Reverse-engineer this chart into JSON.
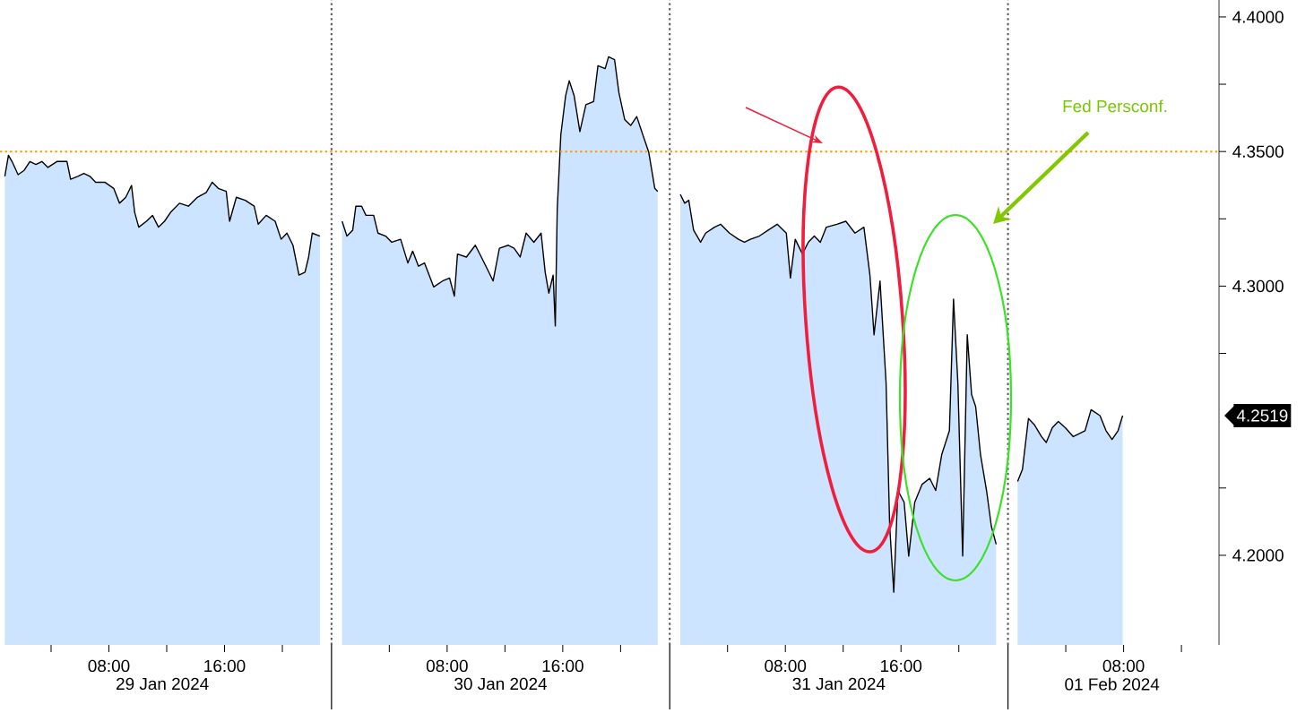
{
  "chart_data": {
    "type": "area",
    "series": [
      {
        "color": "#cce4ff",
        "x": [
          "2024-01-29T00:48",
          "2024-01-29T01:03",
          "2024-01-29T01:18",
          "2024-01-29T01:43",
          "2024-01-29T02:08",
          "2024-01-29T02:32",
          "2024-01-29T02:57",
          "2024-01-29T03:22",
          "2024-01-29T03:47",
          "2024-01-29T04:24",
          "2024-01-29T05:06",
          "2024-01-29T05:21",
          "2024-01-29T05:51",
          "2024-01-29T06:16",
          "2024-01-29T06:41",
          "2024-01-29T07:05",
          "2024-01-29T07:43",
          "2024-01-29T08:20",
          "2024-01-29T08:44",
          "2024-01-29T09:10",
          "2024-01-29T09:34",
          "2024-01-29T09:47",
          "2024-01-29T10:04",
          "2024-01-29T10:36",
          "2024-01-29T11:01",
          "2024-01-29T11:26",
          "2024-01-29T11:51",
          "2024-01-29T12:16",
          "2024-01-29T12:53",
          "2024-01-29T13:30",
          "2024-01-29T14:07",
          "2024-01-29T14:44",
          "2024-01-29T15:09",
          "2024-01-29T15:34",
          "2024-01-29T16:07",
          "2024-01-29T16:21",
          "2024-01-29T16:49",
          "2024-01-29T17:26",
          "2024-01-29T18:03",
          "2024-01-29T18:20",
          "2024-01-29T18:53",
          "2024-01-29T19:30",
          "2024-01-29T19:55",
          "2024-01-29T20:19",
          "2024-01-29T20:44",
          "2024-01-29T21:09",
          "2024-01-29T21:34",
          "2024-01-29T21:49",
          "2024-01-29T22:04",
          "2024-01-29T22:36",
          "2024-01-29T23:30",
          "2024-01-30T00:44",
          "2024-01-30T01:04",
          "2024-01-30T01:28",
          "2024-01-30T01:41",
          "2024-01-30T02:05",
          "2024-01-30T02:23",
          "2024-01-30T02:55",
          "2024-01-30T03:13",
          "2024-01-30T03:45",
          "2024-01-30T04:10",
          "2024-01-30T04:47",
          "2024-01-30T05:17",
          "2024-01-30T05:37",
          "2024-01-30T06:01",
          "2024-01-30T06:26",
          "2024-01-30T07:04",
          "2024-01-30T07:41",
          "2024-01-30T08:10",
          "2024-01-30T08:30",
          "2024-01-30T08:43",
          "2024-01-30T09:20",
          "2024-01-30T09:57",
          "2024-01-30T10:22",
          "2024-01-30T10:47",
          "2024-01-30T11:11",
          "2024-01-30T11:37",
          "2024-01-30T12:14",
          "2024-01-30T12:38",
          "2024-01-30T13:03",
          "2024-01-30T13:28",
          "2024-01-30T14:00",
          "2024-01-30T14:30",
          "2024-01-30T14:47",
          "2024-01-30T15:02",
          "2024-01-30T15:20",
          "2024-01-30T15:29",
          "2024-01-30T15:37",
          "2024-01-30T15:52",
          "2024-01-30T16:12",
          "2024-01-30T16:27",
          "2024-01-30T16:47",
          "2024-01-30T17:11",
          "2024-01-30T17:36",
          "2024-01-30T18:08",
          "2024-01-30T18:26",
          "2024-01-30T18:56",
          "2024-01-30T19:10",
          "2024-01-30T19:35",
          "2024-01-30T19:53",
          "2024-01-30T20:17",
          "2024-01-30T20:42",
          "2024-01-30T21:07",
          "2024-01-30T21:32",
          "2024-01-30T21:57",
          "2024-01-30T22:22",
          "2024-01-30T22:34",
          "2024-01-30T23:30",
          "2024-01-31T00:44",
          "2024-01-31T01:02",
          "2024-01-31T01:19",
          "2024-01-31T01:39",
          "2024-01-31T02:08",
          "2024-01-31T02:29",
          "2024-01-31T03:06",
          "2024-01-31T03:31",
          "2024-01-31T04:08",
          "2024-01-31T04:45",
          "2024-01-31T05:10",
          "2024-01-31T05:35",
          "2024-01-31T06:12",
          "2024-01-31T06:49",
          "2024-01-31T07:26",
          "2024-01-31T08:04",
          "2024-01-31T08:21",
          "2024-01-31T08:41",
          "2024-01-31T09:11",
          "2024-01-31T09:35",
          "2024-01-31T10:00",
          "2024-01-31T10:25",
          "2024-01-31T10:50",
          "2024-01-31T11:34",
          "2024-01-31T12:11",
          "2024-01-31T12:49",
          "2024-01-31T13:26",
          "2024-01-31T13:51",
          "2024-01-31T14:08",
          "2024-01-31T14:33",
          "2024-01-31T14:58",
          "2024-01-31T15:13",
          "2024-01-31T15:30",
          "2024-01-31T15:47",
          "2024-01-31T16:13",
          "2024-01-31T16:32",
          "2024-01-31T16:57",
          "2024-01-31T17:27",
          "2024-01-31T17:59",
          "2024-01-31T18:24",
          "2024-01-31T18:49",
          "2024-01-31T19:21",
          "2024-01-31T19:38",
          "2024-01-31T19:56",
          "2024-01-31T20:16",
          "2024-01-31T20:35",
          "2024-01-31T20:53",
          "2024-01-31T21:10",
          "2024-01-31T21:30",
          "2024-01-31T21:55",
          "2024-01-31T22:15",
          "2024-01-31T22:35",
          "2024-01-31T23:30",
          "2024-02-01T00:40",
          "2024-02-01T01:00",
          "2024-02-01T01:25",
          "2024-02-01T01:49",
          "2024-02-01T02:19",
          "2024-02-01T02:39",
          "2024-02-01T03:04",
          "2024-02-01T03:29",
          "2024-02-01T03:58",
          "2024-02-01T04:31",
          "2024-02-01T04:56",
          "2024-02-01T05:20",
          "2024-02-01T05:45",
          "2024-02-01T06:22",
          "2024-02-01T06:47",
          "2024-02-01T07:12",
          "2024-02-01T07:37",
          "2024-02-01T07:56"
        ],
        "values": [
          4.3408,
          4.3486,
          4.3463,
          4.3414,
          4.343,
          4.3463,
          4.3452,
          4.3463,
          4.3441,
          4.3463,
          4.3463,
          4.3397,
          4.3408,
          4.3419,
          4.3408,
          4.3386,
          4.3386,
          4.3363,
          4.3308,
          4.333,
          4.3374,
          4.3274,
          4.3219,
          4.3241,
          4.3263,
          4.3219,
          4.3241,
          4.3274,
          4.3308,
          4.3297,
          4.333,
          4.3348,
          4.3386,
          4.3363,
          4.3352,
          4.3241,
          4.333,
          4.3319,
          4.3297,
          4.323,
          4.3263,
          4.3241,
          4.3174,
          4.3197,
          4.3152,
          4.3041,
          4.3052,
          4.3108,
          4.3197,
          4.3186,
          null,
          4.3241,
          4.3186,
          4.3208,
          4.3297,
          4.3297,
          4.3263,
          4.3263,
          4.3197,
          4.3186,
          4.3163,
          4.3174,
          4.3086,
          4.313,
          4.3074,
          4.3086,
          4.2997,
          4.3019,
          4.303,
          4.2963,
          4.3119,
          4.3108,
          4.3152,
          4.3108,
          4.3063,
          4.3019,
          4.3141,
          4.3152,
          4.3141,
          4.3108,
          4.3197,
          4.3163,
          4.3197,
          4.3052,
          4.2974,
          4.3041,
          4.2852,
          4.3286,
          4.3563,
          4.3708,
          4.3763,
          4.3708,
          4.3574,
          4.3674,
          4.3686,
          4.3819,
          4.3808,
          4.3852,
          4.3841,
          4.3719,
          4.3619,
          4.3597,
          4.363,
          4.3563,
          4.3497,
          4.3363,
          4.3352,
          null,
          4.3341,
          4.3308,
          4.3319,
          4.3208,
          4.3163,
          4.3197,
          4.3219,
          4.323,
          4.3197,
          4.3174,
          4.3163,
          4.3174,
          4.3186,
          4.3208,
          4.323,
          4.3197,
          4.303,
          4.3174,
          4.3119,
          4.3163,
          4.3186,
          4.3163,
          4.3219,
          4.323,
          4.3241,
          4.3197,
          4.3219,
          4.3041,
          4.2819,
          4.3019,
          4.2641,
          4.2108,
          4.1863,
          4.2241,
          4.2197,
          4.1997,
          4.2197,
          4.2263,
          4.2286,
          4.2241,
          4.2374,
          4.2463,
          4.2952,
          4.2641,
          4.1997,
          4.2819,
          4.2597,
          4.2552,
          4.2374,
          4.2241,
          4.2108,
          4.2041,
          null,
          4.2274,
          4.2319,
          4.2508,
          4.2486,
          4.2441,
          4.2419,
          4.2474,
          4.2497,
          4.2474,
          4.2441,
          4.2452,
          4.2463,
          4.2541,
          4.2519,
          4.2463,
          4.243,
          4.2463,
          4.2519
        ]
      }
    ],
    "xlim": [
      "2024-01-29T00:28",
      "2024-02-01T14:36"
    ],
    "xticks": [
      {
        "value": "2024-01-29T04:00",
        "label": null
      },
      {
        "value": "2024-01-29T08:00",
        "label": "08:00"
      },
      {
        "value": "2024-01-29T12:00",
        "label": null
      },
      {
        "value": "2024-01-29T16:00",
        "label": "16:00"
      },
      {
        "value": "2024-01-29T20:00",
        "label": null
      },
      {
        "value": "2024-01-30T04:00",
        "label": null
      },
      {
        "value": "2024-01-30T08:00",
        "label": "08:00"
      },
      {
        "value": "2024-01-30T12:00",
        "label": null
      },
      {
        "value": "2024-01-30T16:00",
        "label": "16:00"
      },
      {
        "value": "2024-01-30T20:00",
        "label": null
      },
      {
        "value": "2024-01-31T04:00",
        "label": null
      },
      {
        "value": "2024-01-31T08:00",
        "label": "08:00"
      },
      {
        "value": "2024-01-31T12:00",
        "label": null
      },
      {
        "value": "2024-01-31T16:00",
        "label": "16:00"
      },
      {
        "value": "2024-01-31T20:00",
        "label": null
      },
      {
        "value": "2024-02-01T04:00",
        "label": null
      },
      {
        "value": "2024-02-01T08:00",
        "label": "08:00"
      },
      {
        "value": "2024-02-01T12:00",
        "label": null
      }
    ],
    "x2lim": [
      "2024-01-29T11:42",
      "2024-02-01T07:12"
    ],
    "x2ticks": [
      {
        "value": "2024-01-29T11:42",
        "label": "29 Jan 2024"
      },
      {
        "value": "2024-01-30T11:42",
        "label": "30 Jan 2024"
      },
      {
        "value": "2024-01-31T11:42",
        "label": "31 Jan 2024"
      },
      {
        "value": "2024-02-01T07:12",
        "label": "01 Feb 2024"
      }
    ],
    "ylim": [
      4.1667,
      4.4063
    ],
    "yticks": [
      {
        "value": 4.2,
        "label": "4.2000"
      },
      {
        "value": 4.225,
        "label": null
      },
      {
        "value": 4.275,
        "label": null
      },
      {
        "value": 4.3,
        "label": "4.3000"
      },
      {
        "value": 4.325,
        "label": null
      },
      {
        "value": 4.35,
        "label": "4.3500"
      },
      {
        "value": 4.375,
        "label": null
      },
      {
        "value": 4.4,
        "label": "4.4000"
      }
    ],
    "ref_lines": [
      {
        "axis": "y",
        "value": 4.35,
        "color": "#f39c12",
        "line_style": "dotted"
      },
      {
        "axis": "x",
        "value": "2024-01-30T00:00",
        "color": "#555555",
        "line_style": "dotted"
      },
      {
        "axis": "x",
        "value": "2024-01-31T00:00",
        "color": "#555555",
        "line_style": "dotted"
      },
      {
        "axis": "x",
        "value": "2024-02-01T00:00",
        "color": "#555555",
        "line_style": "dotted"
      }
    ],
    "annotations": [
      "Fed Persconf.",
      "4.2519"
    ]
  }
}
